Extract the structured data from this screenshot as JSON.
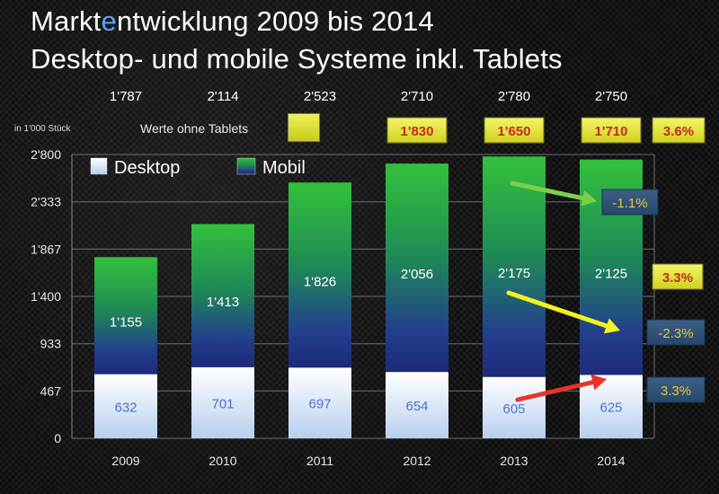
{
  "title": {
    "line1_before": "Markt",
    "line1_accent": "e",
    "line1_after": "ntwicklung 2009 bis 2014",
    "line2": "Desktop- und mobile Systeme inkl. Tablets"
  },
  "unit_label": "in 1'000 Stück",
  "tablet_legend": {
    "label": "Werte ohne Tablets",
    "color": "#e3e63a"
  },
  "chart_data": {
    "type": "bar",
    "stacked": true,
    "categories": [
      "2009",
      "2010",
      "2011",
      "2012",
      "2013",
      "2014"
    ],
    "series": [
      {
        "name": "Desktop",
        "values": [
          632,
          701,
          697,
          654,
          605,
          625
        ],
        "labels": [
          "632",
          "701",
          "697",
          "654",
          "605",
          "625"
        ],
        "color": "#e8f0ff"
      },
      {
        "name": "Mobil",
        "values": [
          1155,
          1413,
          1826,
          2056,
          2175,
          2125
        ],
        "labels": [
          "1'155",
          "1'413",
          "1'826",
          "2'056",
          "2'175",
          "2'125"
        ],
        "color": "#2fbf3a"
      }
    ],
    "totals": [
      "1'787",
      "2'114",
      "2'523",
      "2'710",
      "2'780",
      "2'750"
    ],
    "ylim": [
      0,
      2800
    ],
    "yticks": [
      0,
      467,
      933,
      1400,
      1867,
      2333,
      2800
    ],
    "ytick_labels": [
      "0",
      "467",
      "933",
      "1'400",
      "1'867",
      "2'333",
      "2'800"
    ],
    "grid": true,
    "legend": "top-left",
    "values_without_tablets": [
      {
        "category": "2012",
        "label": "1'830"
      },
      {
        "category": "2013",
        "label": "1'650"
      },
      {
        "category": "2014",
        "label": "1'710"
      }
    ],
    "growth_badges": [
      {
        "label": "3.6%",
        "style": "yellow"
      },
      {
        "label": "-1.1%",
        "style": "blue"
      },
      {
        "label": "3.3%",
        "style": "yellow"
      },
      {
        "label": "-2.3%",
        "style": "blue"
      },
      {
        "label": "3.3%",
        "style": "blue"
      }
    ],
    "arrows": [
      {
        "name": "green-arrow",
        "color": "#7bd04a"
      },
      {
        "name": "yellow-arrow",
        "color": "#f2f21e"
      },
      {
        "name": "red-arrow",
        "color": "#e8332a"
      }
    ]
  }
}
